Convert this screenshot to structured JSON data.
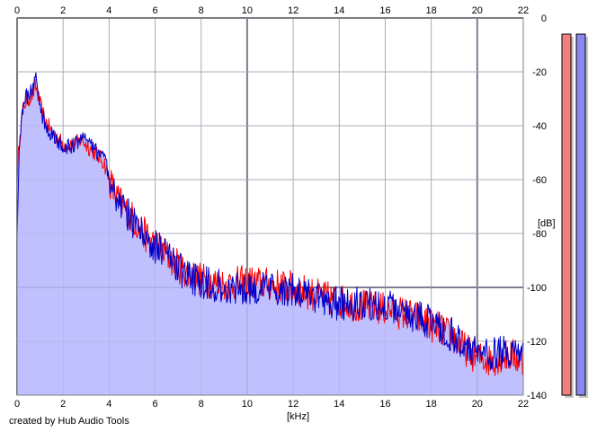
{
  "chart_data": {
    "type": "area",
    "xlabel": "[kHz]",
    "ylabel": "[dB]",
    "xlim": [
      0,
      22
    ],
    "ylim": [
      -140,
      0
    ],
    "x_ticks": [
      0,
      2,
      4,
      6,
      8,
      10,
      12,
      14,
      16,
      18,
      20,
      22
    ],
    "y_ticks": [
      0,
      -20,
      -40,
      -60,
      -80,
      -100,
      -120,
      -140
    ],
    "grid": true,
    "colors": {
      "left": "#ff0000",
      "right": "#0000cc",
      "fill": "#c0c0ff",
      "meter_left": "#f08080",
      "meter_right": "#8888ee"
    },
    "series": [
      {
        "x": [
          0,
          0.1,
          0.2,
          0.3,
          0.5,
          0.7,
          0.8,
          1.0,
          1.2,
          1.5,
          2.0,
          2.5,
          2.8,
          3.0,
          3.5,
          3.8,
          4.0,
          4.3,
          4.6,
          5.0,
          5.5,
          6.0,
          6.5,
          7.0,
          7.5,
          8.0,
          8.5,
          9.0,
          10.0,
          11.0,
          12.0,
          13.0,
          14.0,
          15.0,
          16.0,
          17.0,
          18.0,
          18.5,
          19.0,
          19.5,
          20.0,
          20.5,
          21.0,
          21.5,
          22.0
        ],
        "values": [
          -60,
          -45,
          -38,
          -32,
          -30,
          -28,
          -25,
          -32,
          -38,
          -42,
          -47,
          -47,
          -45,
          -47,
          -51,
          -54,
          -60,
          -66,
          -70,
          -74,
          -80,
          -84,
          -88,
          -92,
          -95,
          -97,
          -98,
          -99,
          -98,
          -99,
          -100,
          -103,
          -105,
          -107,
          -108,
          -110,
          -114,
          -116,
          -119,
          -123,
          -126,
          -127,
          -126,
          -125,
          -128
        ]
      },
      {
        "x": [
          0,
          0.1,
          0.2,
          0.3,
          0.5,
          0.7,
          0.8,
          1.0,
          1.2,
          1.5,
          2.0,
          2.5,
          2.8,
          3.0,
          3.5,
          3.8,
          4.0,
          4.3,
          4.6,
          5.0,
          5.5,
          6.0,
          6.5,
          7.0,
          7.5,
          8.0,
          8.5,
          9.0,
          10.0,
          11.0,
          12.0,
          13.0,
          14.0,
          15.0,
          16.0,
          17.0,
          18.0,
          18.5,
          19.0,
          19.5,
          20.0,
          20.5,
          21.0,
          21.5,
          22.0
        ],
        "values": [
          -80,
          -46,
          -36,
          -30,
          -29,
          -26,
          -20,
          -33,
          -39,
          -43,
          -48,
          -48,
          -43,
          -46,
          -50,
          -53,
          -58,
          -67,
          -70,
          -75,
          -81,
          -85,
          -88,
          -93,
          -96,
          -98,
          -99,
          -100,
          -100,
          -101,
          -101,
          -104,
          -106,
          -106,
          -107,
          -110,
          -113,
          -116,
          -118,
          -122,
          -124,
          -125,
          -124,
          -124,
          -126
        ]
      }
    ],
    "meters": {
      "left": 1.0,
      "right": 1.0
    }
  },
  "footer": {
    "credit": "created by Hub Audio Tools"
  }
}
